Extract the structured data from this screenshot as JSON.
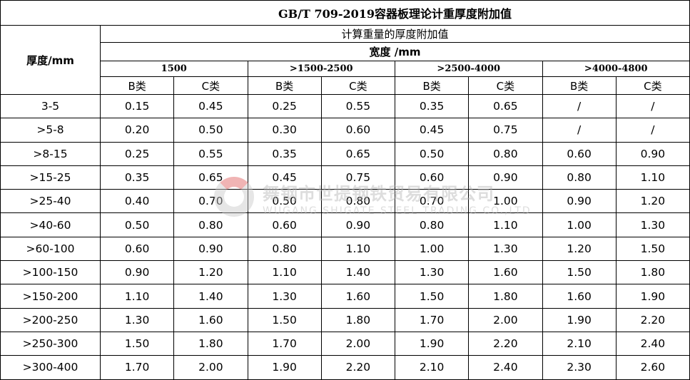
{
  "title": "GB/T 709-2019容器板理论计重厚度附加值",
  "thickness_header": "厚度/mm",
  "subtitle": "计算重量的厚度附加值",
  "width_header": "宽度 /mm",
  "width_groups": [
    "1500",
    ">1500-2500",
    ">2500-4000",
    ">4000-4800"
  ],
  "classes": [
    "B类",
    "C类",
    "B类",
    "C类",
    "B类",
    "C类",
    "B类",
    "C类"
  ],
  "rows": [
    {
      "t": "3-5",
      "v": [
        "0.15",
        "0.45",
        "0.25",
        "0.55",
        "0.35",
        "0.65",
        "/",
        "/"
      ]
    },
    {
      "t": ">5-8",
      "v": [
        "0.20",
        "0.50",
        "0.30",
        "0.60",
        "0.45",
        "0.75",
        "/",
        "/"
      ]
    },
    {
      "t": ">8-15",
      "v": [
        "0.25",
        "0.55",
        "0.35",
        "0.65",
        "0.50",
        "0.80",
        "0.60",
        "0.90"
      ]
    },
    {
      "t": ">15-25",
      "v": [
        "0.35",
        "0.65",
        "0.45",
        "0.75",
        "0.60",
        "0.90",
        "0.80",
        "1.10"
      ]
    },
    {
      "t": ">25-40",
      "v": [
        "0.40",
        "0.70",
        "0.50",
        "0.80",
        "0.70",
        "1.00",
        "0.90",
        "1.20"
      ]
    },
    {
      "t": ">40-60",
      "v": [
        "0.50",
        "0.80",
        "0.60",
        "0.90",
        "0.80",
        "1.10",
        "1.00",
        "1.30"
      ]
    },
    {
      "t": ">60-100",
      "v": [
        "0.60",
        "0.90",
        "0.80",
        "1.10",
        "1.00",
        "1.30",
        "1.20",
        "1.50"
      ]
    },
    {
      "t": ">100-150",
      "v": [
        "0.90",
        "1.20",
        "1.10",
        "1.40",
        "1.30",
        "1.60",
        "1.50",
        "1.80"
      ]
    },
    {
      "t": ">150-200",
      "v": [
        "1.10",
        "1.40",
        "1.30",
        "1.60",
        "1.50",
        "1.80",
        "1.60",
        "1.90"
      ]
    },
    {
      "t": ">200-250",
      "v": [
        "1.30",
        "1.60",
        "1.50",
        "1.80",
        "1.70",
        "2.00",
        "1.90",
        "2.20"
      ]
    },
    {
      "t": ">250-300",
      "v": [
        "1.50",
        "1.80",
        "1.70",
        "2.00",
        "1.90",
        "2.20",
        "2.10",
        "2.40"
      ]
    },
    {
      "t": ">300-400",
      "v": [
        "1.70",
        "2.00",
        "1.90",
        "2.20",
        "2.10",
        "2.40",
        "2.30",
        "2.60"
      ]
    }
  ],
  "watermark": {
    "cn": "舞钢市世提钢铁贸易有限公司",
    "en": "WUGANG SHIGATE STEEL TRADING CO.,LTD",
    "colors": [
      "#e05a5a",
      "#c8c8c8"
    ]
  }
}
